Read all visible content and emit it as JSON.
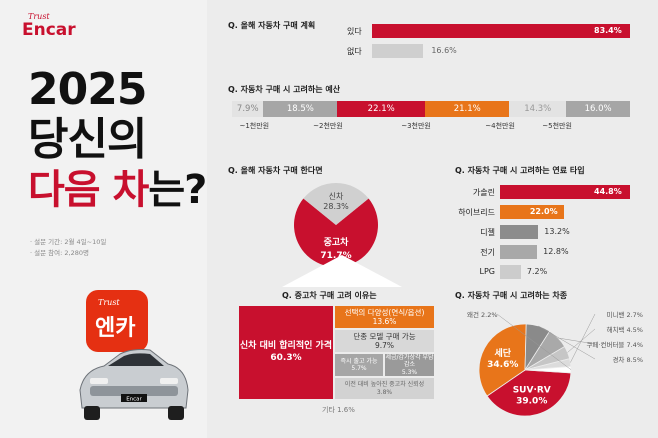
{
  "brand": {
    "small": "Trust",
    "name": "Encar"
  },
  "hero": {
    "year": "2025",
    "line2": "당신의",
    "line3_red": "다음 차",
    "line3_rest": "는?"
  },
  "survey_meta": {
    "period": "· 설문 기간: 2월 4일~10일",
    "participants": "· 설문 참여: 2,280명"
  },
  "app_icon": {
    "small": "Trust",
    "text": "엔카"
  },
  "car": {
    "plate": "Encar"
  },
  "colors": {
    "red": "#c8102e",
    "orange": "#e8751a",
    "gray": "#a6a6a6",
    "lightgray": "#cfcfcf",
    "dark": "#555555"
  },
  "chart_data": [
    {
      "type": "bar",
      "title": "Q. 올해 자동차 구매 계획",
      "categories": [
        "있다",
        "없다"
      ],
      "values": [
        83.4,
        16.6
      ],
      "value_labels": [
        "83.4%",
        "16.6%"
      ]
    },
    {
      "type": "bar",
      "title": "Q. 자동차 구매 시 고려하는 예산",
      "values": [
        7.9,
        18.5,
        22.1,
        21.1,
        14.3,
        16.0
      ],
      "value_labels": [
        "7.9%",
        "18.5%",
        "22.1%",
        "21.1%",
        "14.3%",
        "16.0%"
      ],
      "ticks": [
        "~1천만원",
        "~2천만원",
        "~3천만원",
        "~4천만원",
        "~5천만원"
      ]
    },
    {
      "type": "pie",
      "title": "Q. 올해 자동차 구매 한다면",
      "categories": [
        "신차",
        "중고차"
      ],
      "values": [
        28.3,
        71.7
      ],
      "value_labels": [
        "28.3%",
        "71.7%"
      ]
    },
    {
      "type": "bar",
      "title": "Q. 자동차 구매 시 고려하는 연료 타입",
      "categories": [
        "가솔린",
        "하이브리드",
        "디젤",
        "전기",
        "LPG"
      ],
      "values": [
        44.8,
        22.0,
        13.2,
        12.8,
        7.2
      ],
      "value_labels": [
        "44.8%",
        "22.0%",
        "13.2%",
        "12.8%",
        "7.2%"
      ]
    },
    {
      "type": "heatmap",
      "title": "Q. 중고차 구매 고려 이유는",
      "categories": [
        "신차 대비 합리적인 가격",
        "선택의 다양성(연식/옵션)",
        "단종 모델 구매 가능",
        "즉시 출고 가능",
        "세금/감가상각 부담 감소",
        "이전 대비 높아진 중고차 신뢰성",
        "기타"
      ],
      "values": [
        60.3,
        13.6,
        9.7,
        5.7,
        5.3,
        3.8,
        1.6
      ],
      "value_labels": [
        "60.3%",
        "13.6%",
        "9.7%",
        "5.7%",
        "5.3%",
        "3.8%",
        "기타 1.6%"
      ]
    },
    {
      "type": "pie",
      "title": "Q. 자동차 구매 시 고려하는 차종",
      "categories": [
        "SUV·RV",
        "세단",
        "경차",
        "쿠페·컨버터블",
        "해치백",
        "미니밴",
        "왜건"
      ],
      "values": [
        39.0,
        34.6,
        8.5,
        7.4,
        4.5,
        2.7,
        2.2
      ],
      "value_labels": [
        "39.0%",
        "34.6%",
        "8.5%",
        "7.4%",
        "4.5%",
        "2.7%",
        "2.2%"
      ]
    }
  ]
}
